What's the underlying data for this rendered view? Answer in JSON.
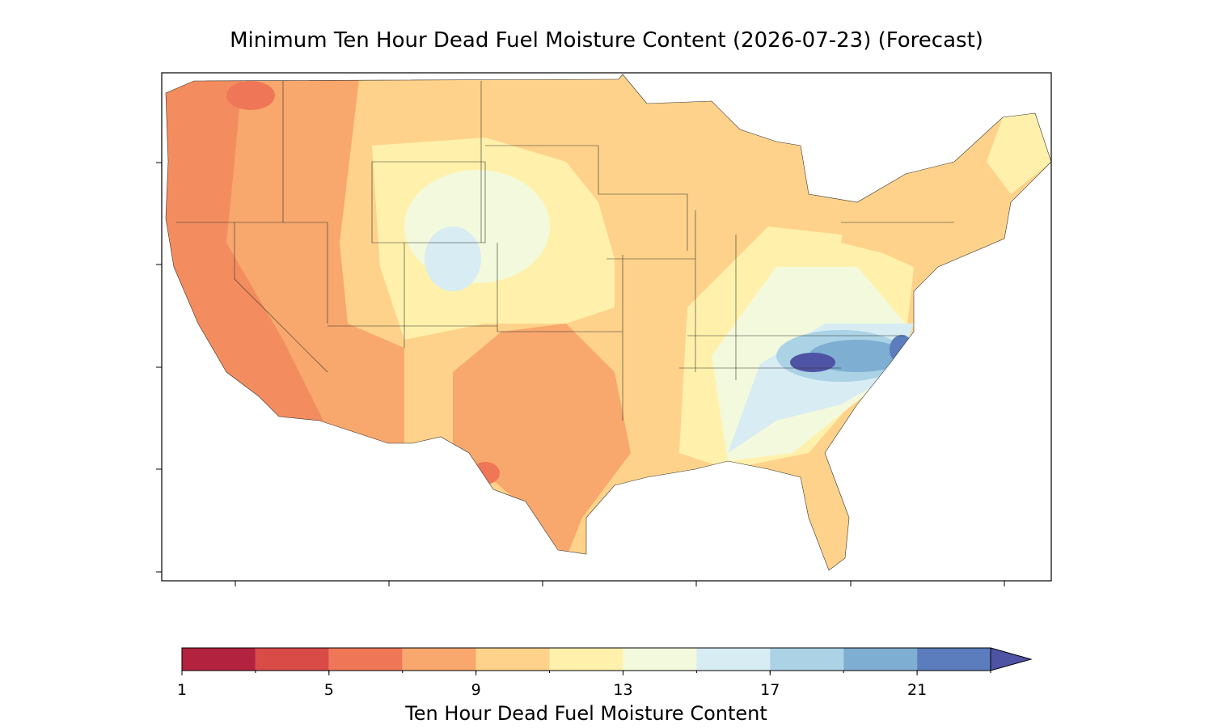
{
  "title": "Minimum Ten Hour Dead Fuel Moisture Content (2026-07-23) (Forecast)",
  "colorbar": {
    "label": "Ten Hour Dead Fuel Moisture Content",
    "bounds": [
      1,
      3,
      5,
      7,
      9,
      11,
      13,
      15,
      17,
      19,
      21,
      23
    ],
    "colors": [
      "#b3223f",
      "#d84b47",
      "#ef7656",
      "#f8a86c",
      "#fed28a",
      "#fff1ab",
      "#f3f9dc",
      "#d7ecf3",
      "#abd2e5",
      "#7eaed1",
      "#5b7dbd"
    ],
    "extend_color": "#4f53a3",
    "ticks": [
      1,
      5,
      9,
      13,
      17,
      21
    ]
  }
}
